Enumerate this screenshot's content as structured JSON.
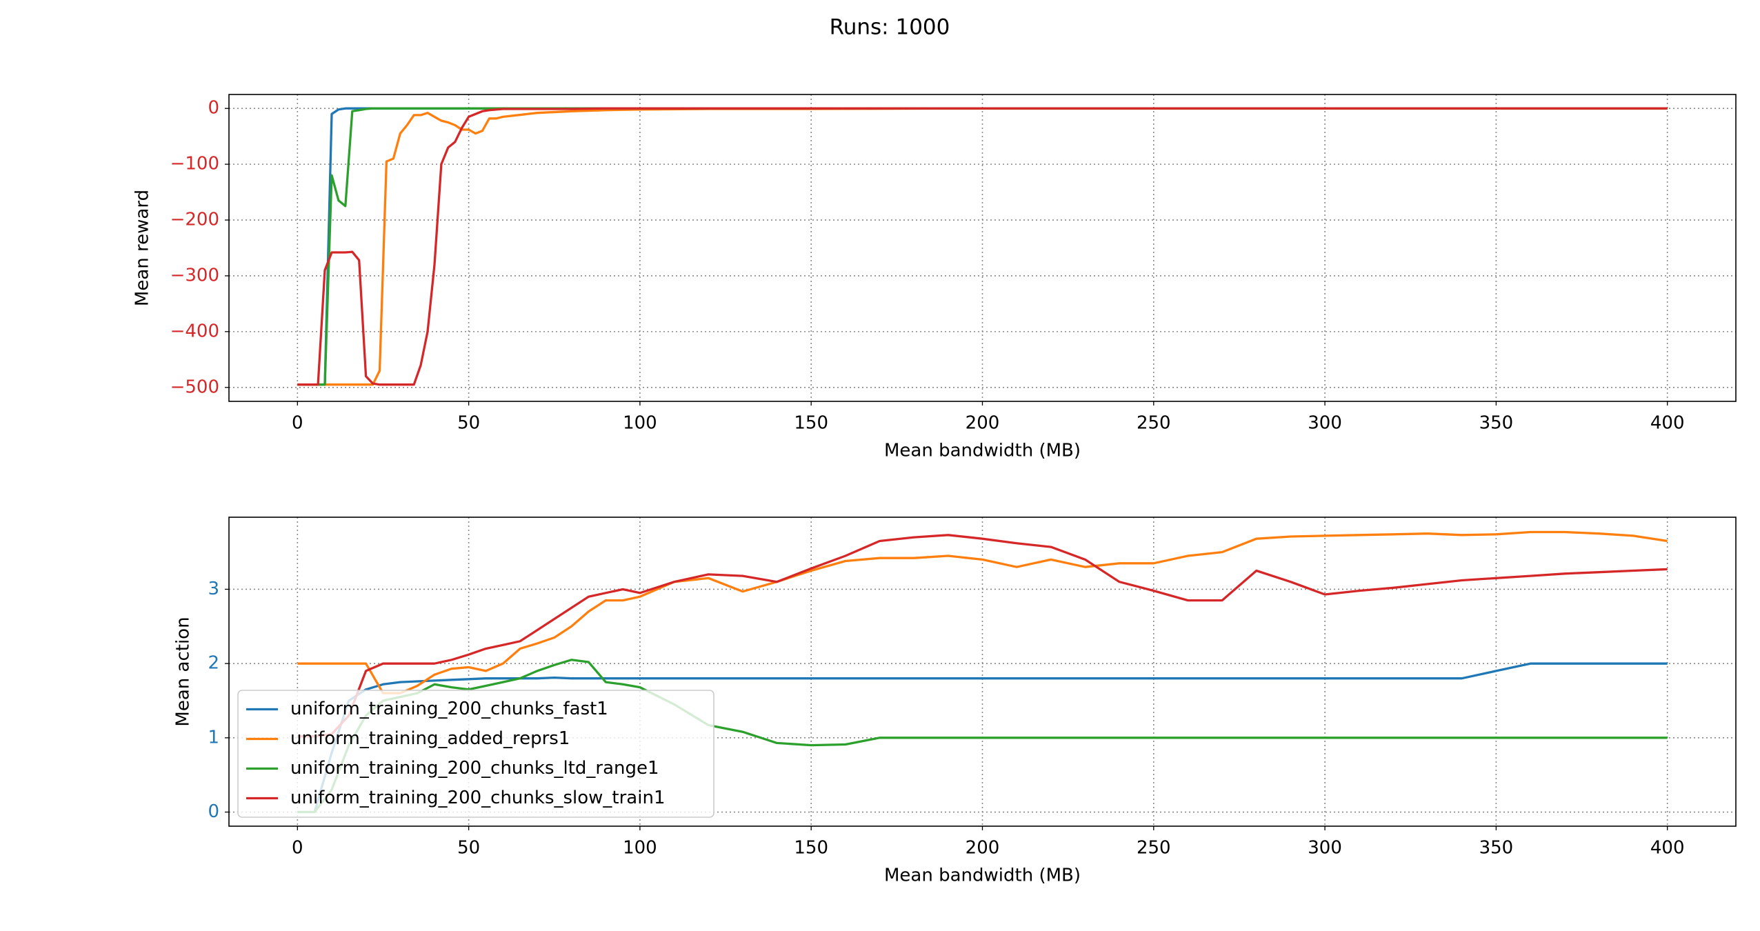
{
  "title": "Runs: 1000",
  "chart_data": [
    {
      "type": "line",
      "xlabel": "Mean bandwidth (MB)",
      "ylabel": "Mean reward",
      "ytick_color": "#d62728",
      "grid": true,
      "xlim": [
        -20,
        420
      ],
      "ylim": [
        -525,
        25
      ],
      "xticks": [
        0,
        50,
        100,
        150,
        200,
        250,
        300,
        350,
        400
      ],
      "yticks": [
        {
          "value": -500,
          "label": "−500"
        },
        {
          "value": -400,
          "label": "−400"
        },
        {
          "value": -300,
          "label": "−300"
        },
        {
          "value": -200,
          "label": "−200"
        },
        {
          "value": -100,
          "label": "−100"
        },
        0
      ],
      "x": [
        0,
        2,
        4,
        6,
        8,
        10,
        12,
        14,
        16,
        18,
        20,
        22,
        24,
        26,
        28,
        30,
        32,
        34,
        36,
        38,
        40,
        42,
        44,
        46,
        48,
        50,
        52,
        54,
        56,
        58,
        60,
        70,
        80,
        90,
        100,
        120,
        150,
        200,
        250,
        300,
        350,
        400
      ],
      "series": [
        {
          "color": "#1f77b4",
          "values": [
            -495,
            -495,
            -495,
            -495,
            -495,
            -10,
            -2,
            0,
            0,
            0,
            0,
            0,
            0,
            0,
            0,
            0,
            0,
            0,
            0,
            0,
            0,
            0,
            0,
            0,
            0,
            0,
            0,
            0,
            0,
            0,
            0,
            0,
            0,
            0,
            0,
            0,
            0,
            0,
            0,
            0,
            0,
            0
          ]
        },
        {
          "color": "#ff7f0e",
          "values": [
            -495,
            -495,
            -495,
            -495,
            -495,
            -495,
            -495,
            -495,
            -495,
            -495,
            -495,
            -495,
            -470,
            -95,
            -90,
            -45,
            -30,
            -12,
            -12,
            -8,
            -15,
            -22,
            -25,
            -30,
            -38,
            -38,
            -45,
            -40,
            -18,
            -18,
            -15,
            -8,
            -5,
            -3,
            -2,
            -1,
            -1,
            0,
            0,
            0,
            0,
            0
          ]
        },
        {
          "color": "#2ca02c",
          "values": [
            -495,
            -495,
            -495,
            -495,
            -495,
            -120,
            -165,
            -175,
            -5,
            -3,
            -1,
            0,
            0,
            0,
            0,
            0,
            0,
            0,
            0,
            0,
            0,
            0,
            0,
            0,
            0,
            0,
            0,
            0,
            0,
            0,
            0,
            0,
            0,
            0,
            0,
            0,
            0,
            0,
            0,
            0,
            0,
            0
          ]
        },
        {
          "color": "#d62728",
          "values": [
            -495,
            -495,
            -495,
            -495,
            -290,
            -258,
            -258,
            -258,
            -257,
            -272,
            -480,
            -493,
            -495,
            -495,
            -495,
            -495,
            -495,
            -495,
            -460,
            -400,
            -280,
            -100,
            -70,
            -60,
            -35,
            -15,
            -10,
            -5,
            -3,
            -2,
            -1,
            -1,
            -1,
            0,
            0,
            0,
            0,
            0,
            0,
            0,
            0,
            0
          ]
        }
      ]
    },
    {
      "type": "line",
      "xlabel": "Mean bandwidth (MB)",
      "ylabel": "Mean action",
      "ytick_color": "#1f77b4",
      "grid": true,
      "legend": "lower left",
      "xlim": [
        -20,
        420
      ],
      "ylim": [
        -0.19,
        3.97
      ],
      "xticks": [
        0,
        50,
        100,
        150,
        200,
        250,
        300,
        350,
        400
      ],
      "yticks": [
        0,
        1,
        2,
        3
      ],
      "x": [
        0,
        5,
        10,
        15,
        20,
        25,
        30,
        35,
        40,
        45,
        50,
        55,
        60,
        65,
        70,
        75,
        80,
        85,
        90,
        95,
        100,
        110,
        120,
        130,
        140,
        150,
        160,
        170,
        180,
        190,
        200,
        210,
        220,
        230,
        240,
        250,
        260,
        270,
        280,
        290,
        300,
        310,
        320,
        330,
        340,
        350,
        360,
        370,
        380,
        390,
        400
      ],
      "series": [
        {
          "name": "uniform_training_200_chunks_fast1",
          "color": "#1f77b4",
          "values": [
            0,
            0,
            0.8,
            1.5,
            1.65,
            1.72,
            1.75,
            1.76,
            1.77,
            1.78,
            1.79,
            1.8,
            1.8,
            1.8,
            1.8,
            1.81,
            1.8,
            1.8,
            1.8,
            1.8,
            1.8,
            1.8,
            1.8,
            1.8,
            1.8,
            1.8,
            1.8,
            1.8,
            1.8,
            1.8,
            1.8,
            1.8,
            1.8,
            1.8,
            1.8,
            1.8,
            1.8,
            1.8,
            1.8,
            1.8,
            1.8,
            1.8,
            1.8,
            1.8,
            1.8,
            1.9,
            2.0,
            2.0,
            2.0,
            2.0,
            2.0
          ]
        },
        {
          "name": "uniform_training_added_reprs1",
          "color": "#ff7f0e",
          "values": [
            2,
            2,
            2,
            2,
            2,
            1.6,
            1.6,
            1.7,
            1.85,
            1.93,
            1.95,
            1.9,
            2.0,
            2.2,
            2.27,
            2.35,
            2.5,
            2.7,
            2.85,
            2.85,
            2.9,
            3.1,
            3.15,
            2.97,
            3.1,
            3.25,
            3.38,
            3.42,
            3.42,
            3.45,
            3.4,
            3.3,
            3.4,
            3.3,
            3.35,
            3.35,
            3.45,
            3.5,
            3.68,
            3.71,
            3.72,
            3.73,
            3.74,
            3.75,
            3.73,
            3.74,
            3.77,
            3.77,
            3.75,
            3.72,
            3.65
          ]
        },
        {
          "name": "uniform_training_200_chunks_ltd_range1",
          "color": "#2ca02c",
          "values": [
            0,
            0,
            0.3,
            0.9,
            1.3,
            1.5,
            1.55,
            1.6,
            1.72,
            1.68,
            1.65,
            1.7,
            1.75,
            1.8,
            1.9,
            1.98,
            2.05,
            2.02,
            1.75,
            1.72,
            1.68,
            1.45,
            1.17,
            1.08,
            0.93,
            0.9,
            0.91,
            1,
            1,
            1,
            1,
            1,
            1,
            1,
            1,
            1,
            1,
            1,
            1,
            1,
            1,
            1,
            1,
            1,
            1,
            1,
            1,
            1,
            1,
            1,
            1
          ]
        },
        {
          "name": "uniform_training_200_chunks_slow_train1",
          "color": "#d62728",
          "values": [
            1.02,
            1.02,
            1.05,
            1.3,
            1.9,
            2,
            2,
            2,
            2,
            2.05,
            2.12,
            2.2,
            2.25,
            2.3,
            2.45,
            2.6,
            2.75,
            2.9,
            2.95,
            3.0,
            2.95,
            3.1,
            3.2,
            3.18,
            3.1,
            3.28,
            3.45,
            3.65,
            3.7,
            3.73,
            3.68,
            3.62,
            3.57,
            3.4,
            3.1,
            2.98,
            2.85,
            2.85,
            3.25,
            3.1,
            2.93,
            2.98,
            3.02,
            3.07,
            3.12,
            3.15,
            3.18,
            3.21,
            3.23,
            3.25,
            3.27
          ]
        }
      ]
    }
  ]
}
